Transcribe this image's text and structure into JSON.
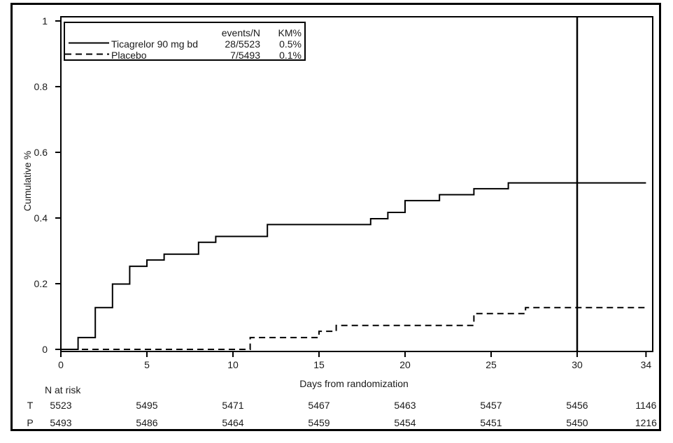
{
  "figure": {
    "ylabel": "Cumulative %",
    "xlabel": "Days from randomization"
  },
  "legend": {
    "col_events": "events/N",
    "col_km": "KM%",
    "rows": [
      {
        "label": "Ticagrelor 90 mg bd",
        "events_n": "28/5523",
        "km_pct": "0.5%",
        "style": "solid"
      },
      {
        "label": "Placebo",
        "events_n": "7/5493",
        "km_pct": "0.1%",
        "style": "dashed"
      }
    ]
  },
  "at_risk": {
    "title": "N at risk",
    "days": [
      0,
      5,
      10,
      15,
      20,
      25,
      30,
      34
    ],
    "rows": [
      {
        "label": "T",
        "counts": [
          "5523",
          "5495",
          "5471",
          "5467",
          "5463",
          "5457",
          "5456",
          "1146"
        ]
      },
      {
        "label": "P",
        "counts": [
          "5493",
          "5486",
          "5464",
          "5459",
          "5454",
          "5451",
          "5450",
          "1216"
        ]
      }
    ]
  },
  "chart_data": {
    "type": "line",
    "subtype": "kaplan-meier-step",
    "title": "",
    "xlabel": "Days from randomization",
    "ylabel": "Cumulative %",
    "xlim": [
      0,
      34.4
    ],
    "ylim": [
      0,
      1.01
    ],
    "x_ticks": [
      0,
      5,
      10,
      15,
      20,
      25,
      30,
      34
    ],
    "x_tick_labels": [
      "0",
      "5",
      "10",
      "15",
      "20",
      "25",
      "30",
      "34"
    ],
    "y_ticks": [
      0,
      0.2,
      0.4,
      0.6,
      0.8,
      1
    ],
    "y_tick_labels": [
      "0",
      "0.2",
      "0.4",
      "0.6",
      "0.8",
      "1"
    ],
    "grid": false,
    "legend_position": "top-left-inside",
    "reference_line_x": 30,
    "line_color": "#000000",
    "series": [
      {
        "name": "Ticagrelor 90 mg bd",
        "style": "solid",
        "events_n": "28/5523",
        "km_pct": "0.5%",
        "start": [
          0,
          0
        ],
        "steps": [
          [
            1,
            0.036
          ],
          [
            2,
            0.127
          ],
          [
            3,
            0.199
          ],
          [
            4,
            0.253
          ],
          [
            5,
            0.272
          ],
          [
            6,
            0.29
          ],
          [
            8,
            0.326
          ],
          [
            9,
            0.344
          ],
          [
            12,
            0.38
          ],
          [
            18,
            0.398
          ],
          [
            19,
            0.417
          ],
          [
            20,
            0.453
          ],
          [
            22,
            0.471
          ],
          [
            24,
            0.489
          ],
          [
            26,
            0.507
          ]
        ],
        "end_day": 34,
        "final_value": 0.507
      },
      {
        "name": "Placebo",
        "style": "dashed",
        "events_n": "7/5493",
        "km_pct": "0.1%",
        "start": [
          0,
          0
        ],
        "steps": [
          [
            11,
            0.036
          ],
          [
            15,
            0.055
          ],
          [
            16,
            0.073
          ],
          [
            24,
            0.109
          ],
          [
            27,
            0.127
          ]
        ],
        "end_day": 34,
        "final_value": 0.127
      }
    ]
  }
}
